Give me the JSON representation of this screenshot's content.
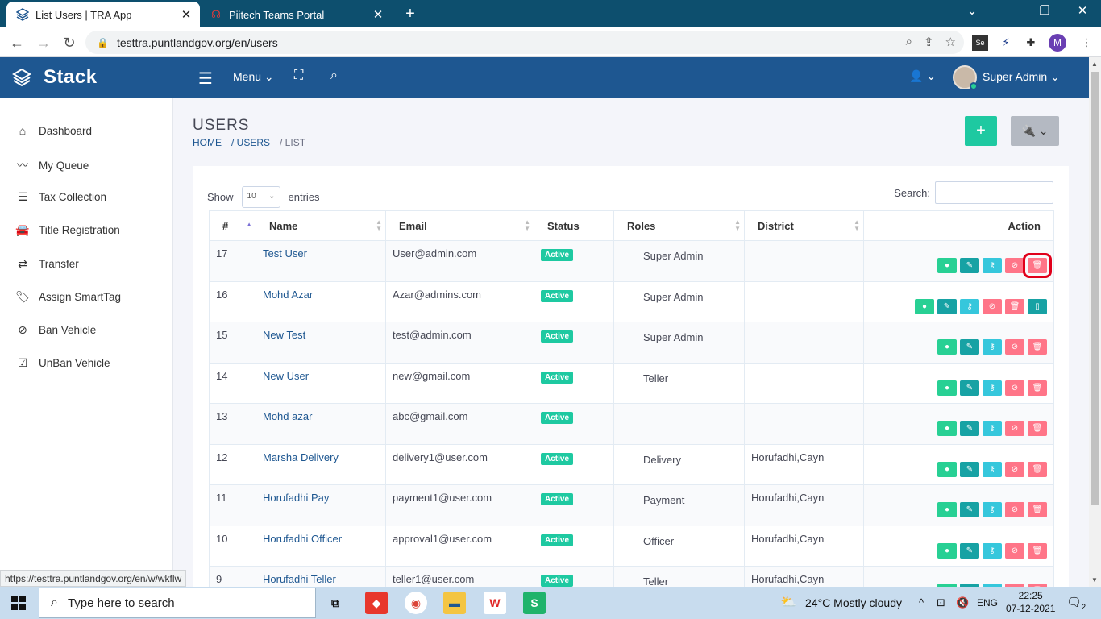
{
  "browser": {
    "active_tab_title": "List Users | TRA App",
    "inactive_tab_title": "Piitech Teams Portal",
    "url": "testtra.puntlandgov.org/en/users",
    "profile_initial": "M",
    "status_url": "https://testtra.puntlandgov.org/en/w/wkflw"
  },
  "header": {
    "brand": "Stack",
    "menu_label": "Menu",
    "user_name": "Super Admin"
  },
  "sidebar": {
    "items": [
      {
        "label": "Dashboard",
        "icon": "home-icon"
      },
      {
        "label": "My Queue",
        "icon": "trend-icon"
      },
      {
        "label": "Tax Collection",
        "icon": "list-icon"
      },
      {
        "label": "Title Registration",
        "icon": "car-icon"
      },
      {
        "label": "Transfer",
        "icon": "transfer-icon"
      },
      {
        "label": "Assign SmartTag",
        "icon": "tags-icon"
      },
      {
        "label": "Ban Vehicle",
        "icon": "ban-icon"
      },
      {
        "label": "UnBan Vehicle",
        "icon": "check-square-icon"
      }
    ]
  },
  "page": {
    "title": "USERS",
    "breadcrumb": [
      "HOME",
      "/ USERS",
      "/ LIST"
    ],
    "show_label": "Show",
    "entries_value": "10",
    "entries_label": "entries",
    "search_label": "Search:"
  },
  "table": {
    "headers": [
      "#",
      "Name",
      "Email",
      "Status",
      "Roles",
      "District",
      "Action"
    ],
    "rows": [
      {
        "id": "17",
        "name": "Test User",
        "email": "User@admin.com",
        "status": "Active",
        "role": "Super Admin",
        "district": ""
      },
      {
        "id": "16",
        "name": "Mohd Azar",
        "email": "Azar@admins.com",
        "status": "Active",
        "role": "Super Admin",
        "district": ""
      },
      {
        "id": "15",
        "name": "New Test",
        "email": "test@admin.com",
        "status": "Active",
        "role": "Super Admin",
        "district": ""
      },
      {
        "id": "14",
        "name": "New User",
        "email": "new@gmail.com",
        "status": "Active",
        "role": "Teller",
        "district": ""
      },
      {
        "id": "13",
        "name": "Mohd azar",
        "email": "abc@gmail.com",
        "status": "Active",
        "role": "",
        "district": ""
      },
      {
        "id": "12",
        "name": "Marsha Delivery",
        "email": "delivery1@user.com",
        "status": "Active",
        "role": "Delivery",
        "district": "Horufadhi,Cayn"
      },
      {
        "id": "11",
        "name": "Horufadhi Pay",
        "email": "payment1@user.com",
        "status": "Active",
        "role": "Payment",
        "district": "Horufadhi,Cayn"
      },
      {
        "id": "10",
        "name": "Horufadhi Officer",
        "email": "approval1@user.com",
        "status": "Active",
        "role": "Officer",
        "district": "Horufadhi,Cayn"
      },
      {
        "id": "9",
        "name": "Horufadhi Teller",
        "email": "teller1@user.com",
        "status": "Active",
        "role": "Teller",
        "district": "Horufadhi,Cayn"
      }
    ]
  },
  "taskbar": {
    "search_placeholder": "Type here to search",
    "weather": "24°C  Mostly cloudy",
    "lang": "ENG",
    "time": "22:25",
    "date": "07-12-2021",
    "notifications": "2"
  },
  "colors": {
    "header_bg": "#1e5791",
    "accent_green": "#1ec9a1",
    "danger": "#ff7588",
    "highlight": "#e0001b"
  }
}
